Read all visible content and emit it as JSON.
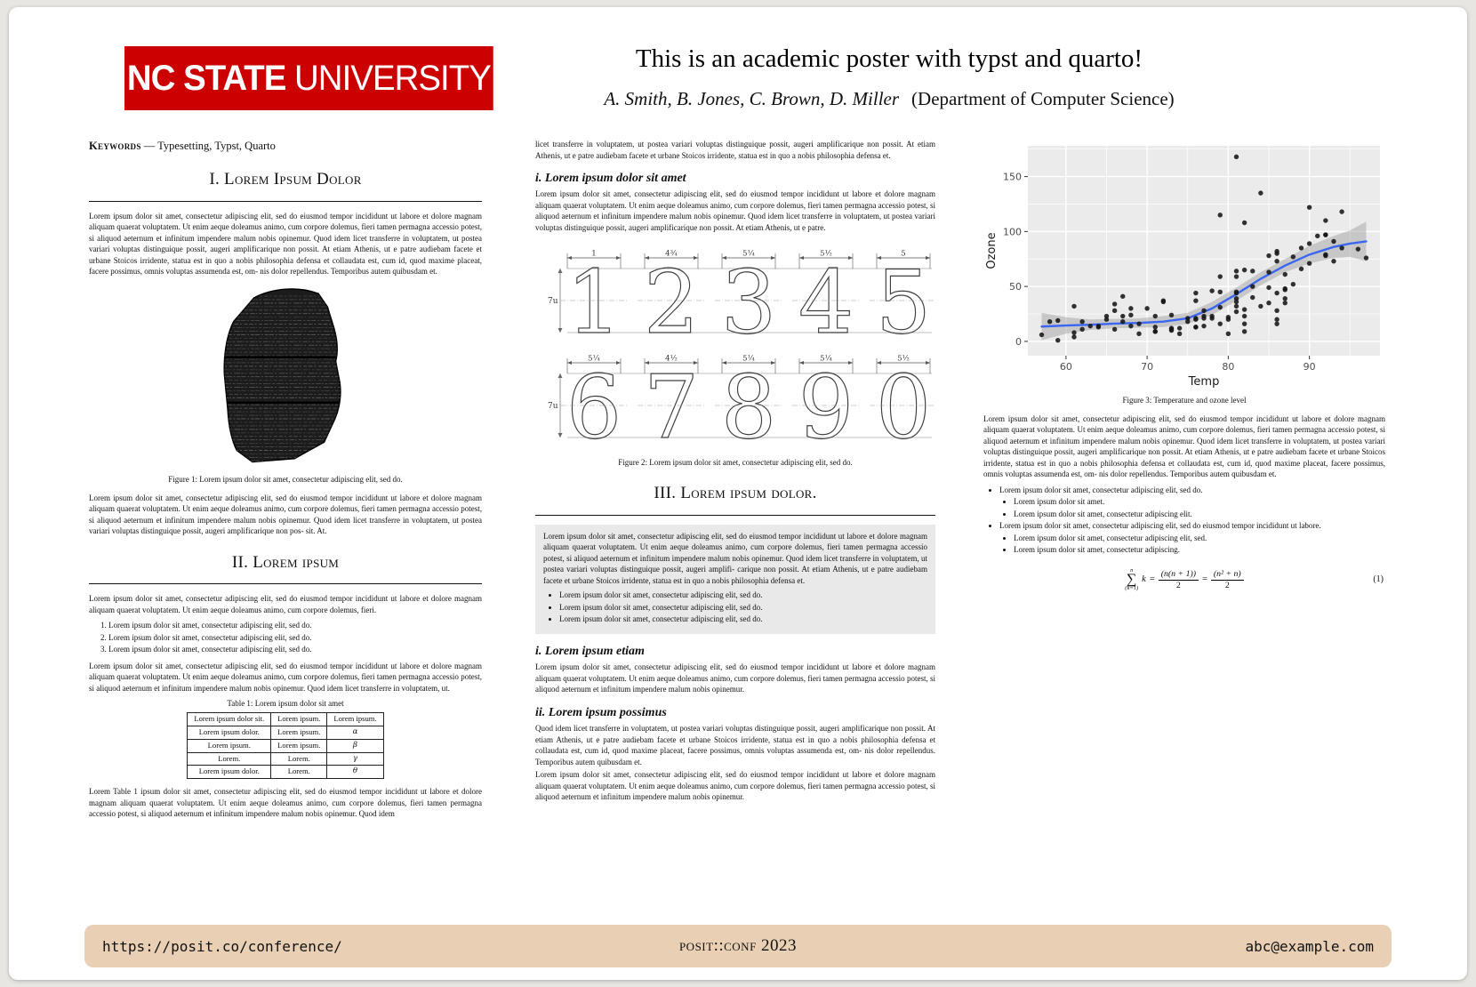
{
  "logo": {
    "bold": "NC STATE",
    "regular": "UNIVERSITY"
  },
  "header": {
    "title": "This is an academic poster with typst and quarto!",
    "authors": "A. Smith, B. Jones, C. Brown, D. Miller",
    "affiliation": "(Department of Computer Science)"
  },
  "keywords": {
    "label": "Keywords",
    "value": "— Typesetting, Typst, Quarto"
  },
  "sections": {
    "s1": "I. Lorem Ipsum Dolor",
    "s2": "II. Lorem ipsum",
    "s3": "III. Lorem ipsum dolor."
  },
  "col1": {
    "para1": "Lorem ipsum dolor sit amet, consectetur adipiscing elit, sed do eiusmod tempor incididunt ut labore et dolore magnam aliquam quaerat voluptatem. Ut enim aeque doleamus animo, cum corpore dolemus, fieri tamen permagna accessio potest, si aliquod aeternum et infinitum impendere malum nobis opinemur. Quod idem licet transferre in voluptatem, ut postea variari voluptas distinguique possit, augeri amplificarique non possit. At etiam Athenis, ut e patre audiebam facete et urbane Stoicos irridente, statua est in quo a nobis philosophia defensa et collaudata est, cum id, quod maxime placeat, facere possimus, omnis voluptas assumenda est, om- nis dolor repellendus. Temporibus autem quibusdam et.",
    "fig1_caption": "Figure 1:  Lorem ipsum dolor sit amet, consectetur adipiscing elit, sed do.",
    "para2": "Lorem ipsum dolor sit amet, consectetur adipiscing elit, sed do eiusmod tempor incididunt ut labore et dolore magnam aliquam quaerat voluptatem. Ut enim aeque doleamus animo, cum corpore dolemus, fieri tamen permagna accessio potest, si aliquod aeternum et infinitum impendere malum nobis opinemur. Quod idem licet transferre in voluptatem, ut postea variari voluptas distinguique possit, augeri amplificarique non pos- sit. At.",
    "s2_para1": "Lorem ipsum dolor sit amet, consectetur adipiscing elit, sed do eiusmod tempor incididunt ut labore et dolore magnam aliquam quaerat voluptatem. Ut enim aeque doleamus animo, cum corpore dolemus, fieri.",
    "numbered": [
      "Lorem ipsum dolor sit amet, consectetur adipiscing elit, sed do.",
      "Lorem ipsum dolor sit amet, consectetur adipiscing elit, sed do.",
      "Lorem ipsum dolor sit amet, consectetur adipiscing elit, sed do."
    ],
    "s2_para2": "Lorem ipsum dolor sit amet, consectetur adipiscing elit, sed do eiusmod tempor incididunt ut labore et dolore magnam aliquam quaerat voluptatem. Ut enim aeque doleamus animo, cum corpore dolemus, fieri tamen permagna accessio potest, si aliquod aeternum et infinitum impendere malum nobis opinemur. Quod idem licet transferre in voluptatem, ut.",
    "table_caption": "Table 1:  Lorem ipsum dolor sit amet",
    "s2_para3": "Lorem Table 1 ipsum dolor sit amet, consectetur adipiscing elit, sed do eiusmod tempor incididunt ut labore et dolore magnam aliquam quaerat voluptatem. Ut enim aeque doleamus animo, cum corpore dolemus, fieri tamen permagna accessio potest, si aliquod aeternum et infinitum impendere malum nobis opinemur. Quod idem"
  },
  "table1": {
    "headers": [
      "Lorem ipsum dolor sit.",
      "Lorem ipsum.",
      "Lorem ipsum."
    ],
    "rows": [
      [
        "Lorem ipsum dolor.",
        "Lorem ipsum.",
        "α"
      ],
      [
        "Lorem ipsum.",
        "Lorem ipsum.",
        "β"
      ],
      [
        "Lorem.",
        "Lorem.",
        "γ"
      ],
      [
        "Lorem ipsum dolor.",
        "Lorem.",
        "θ"
      ]
    ]
  },
  "col2": {
    "cont_para": "licet transferre in voluptatem, ut postea variari voluptas distinguique possit, augeri amplificarique non possit. At etiam Athenis, ut e patre audiebam facete et urbane Stoicos irridente, statua est in quo a nobis philosophia defensa et.",
    "sub1_title": "i. Lorem ipsum dolor sit amet",
    "sub1_para": "Lorem ipsum dolor sit amet, consectetur adipiscing elit, sed do eiusmod tempor incididunt ut labore et dolore magnam aliquam quaerat voluptatem. Ut enim aeque doleamus animo, cum corpore dolemus, fieri tamen permagna accessio potest, si aliquod aeternum et infinitum impendere malum nobis opinemur. Quod idem licet transferre in voluptatem, ut postea variari voluptas distinguique possit, augeri amplificarique non possit. At etiam Athenis, ut e patre.",
    "fig2_caption": "Figure 2:  Lorem ipsum dolor sit amet, consectetur adipiscing elit, sed do.",
    "callout_para": "Lorem ipsum dolor sit amet, consectetur adipiscing elit, sed do eiusmod tempor incididunt ut labore et dolore magnam aliquam quaerat voluptatem. Ut enim aeque doleamus animo, cum corpore dolemus, fieri tamen permagna accessio potest, si aliquod aeternum et infinitum impendere malum nobis opinemur. Quod idem licet transferre in voluptatem, ut postea variari voluptas distinguique possit, augeri amplifi- carique non possit. At etiam Athenis, ut e patre audiebam facete et urbane Stoicos irridente, statua est in quo a nobis philosophia defensa et.",
    "callout_bullets": [
      "Lorem ipsum dolor sit amet, consectetur adipiscing elit, sed do.",
      "Lorem ipsum dolor sit amet, consectetur adipiscing elit, sed do.",
      "Lorem ipsum dolor sit amet, consectetur adipiscing elit, sed do."
    ],
    "sub2_title": "i. Lorem ipsum etiam",
    "sub2_para": "Lorem ipsum dolor sit amet, consectetur adipiscing elit, sed do eiusmod tempor incididunt ut labore et dolore magnam aliquam quaerat voluptatem. Ut enim aeque doleamus animo, cum corpore dolemus, fieri tamen permagna accessio potest, si aliquod aeternum et infinitum impendere malum nobis opinemur.",
    "sub3_title": "ii. Lorem ipsum possimus",
    "sub3_para1": "Quod idem licet transferre in voluptatem, ut postea variari voluptas distinguique possit, augeri amplificarique non possit. At etiam Athenis, ut e patre audiebam facete et urbane Stoicos irridente, statua est in quo a nobis philosophia defensa et collaudata est, cum id, quod maxime placeat, facere possimus, omnis voluptas assumenda est, om- nis dolor repellendus. Temporibus autem quibusdam et.",
    "sub3_para2": "Lorem ipsum dolor sit amet, consectetur adipiscing elit, sed do eiusmod tempor incididunt ut labore et dolore magnam aliquam quaerat voluptatem. Ut enim aeque doleamus animo, cum corpore dolemus, fieri tamen permagna accessio potest, si aliquod aeternum et infinitum impendere malum nobis opinemur."
  },
  "figure2": {
    "top_digits": [
      "1",
      "2",
      "3",
      "4",
      "5"
    ],
    "top_widths": [
      "1",
      "4¾",
      "5¼",
      "5½",
      "5"
    ],
    "bottom_digits": [
      "6",
      "7",
      "8",
      "9",
      "0"
    ],
    "bottom_widths": [
      "5¼",
      "4½",
      "5¼",
      "5¼",
      "5½"
    ],
    "height_label": "7u"
  },
  "col3": {
    "fig3_caption": "Figure 3:  Temperature and ozone level",
    "para": "Lorem ipsum dolor sit amet, consectetur adipiscing elit, sed do eiusmod tempor incididunt ut labore et dolore magnam aliquam quaerat voluptatem. Ut enim aeque doleamus animo, cum corpore dolemus, fieri tamen permagna accessio potest, si aliquod aeternum et infinitum impendere malum nobis opinemur. Quod idem licet transferre in voluptatem, ut postea variari voluptas distinguique possit, augeri amplificarique non possit. At etiam Athenis, ut e patre audiebam facete et urbane Stoicos irridente, statua est in quo a nobis philosophia defensa et collaudata est, cum id, quod maxime placeat, facere possimus, omnis voluptas assumenda est, om- nis dolor repellendus. Temporibus autem quibusdam et.",
    "bullets": [
      {
        "text": "Lorem ipsum dolor sit amet, consectetur adipiscing elit, sed do.",
        "sub": [
          "Lorem ipsum dolor sit amet.",
          "Lorem ipsum dolor sit amet, consectetur adipiscing elit."
        ]
      },
      {
        "text": "Lorem ipsum dolor sit amet, consectetur adipiscing elit, sed do eiusmod tempor incididunt ut labore.",
        "sub": [
          "Lorem ipsum dolor sit amet, consectetur adipiscing elit, sed.",
          "Lorem ipsum dolor sit amet, consectetur adipiscing."
        ]
      }
    ]
  },
  "equation": {
    "sum_top": "n",
    "sum_bottom": "(k=1)",
    "op": "∑",
    "var": "k",
    "eq1": "=",
    "frac1_num": "(n(n + 1))",
    "frac1_den": "2",
    "eq2": "=",
    "frac2_num": "(n² + n)",
    "frac2_den": "2",
    "tag": "(1)"
  },
  "footer": {
    "left": "https://posit.co/conference/",
    "center": "posit::conf 2023",
    "right": "abc@example.com"
  },
  "colors": {
    "brand_red": "#CC0000",
    "footer_bg": "#E9D0B4",
    "callout_bg": "#E9E9E9",
    "chart_panel": "#EBEBEB",
    "smooth_line": "#3A66F2",
    "ribbon": "#9B9B9B",
    "point": "#161616"
  },
  "chart_data": {
    "type": "scatter",
    "title": "",
    "xlabel": "Temp",
    "ylabel": "Ozone",
    "xlim": [
      55.3,
      98.7
    ],
    "ylim": [
      -13,
      178
    ],
    "x_ticks": [
      60,
      70,
      80,
      90
    ],
    "x_minor": [
      65,
      75,
      85,
      95
    ],
    "y_ticks": [
      0,
      50,
      100,
      150
    ],
    "y_minor": [
      25,
      75,
      125,
      175
    ],
    "grid": true,
    "legend": false,
    "points": [
      [
        67,
        41
      ],
      [
        72,
        36
      ],
      [
        74,
        12
      ],
      [
        62,
        18
      ],
      [
        66,
        28
      ],
      [
        65,
        23
      ],
      [
        59,
        19
      ],
      [
        61,
        8
      ],
      [
        74,
        7
      ],
      [
        69,
        16
      ],
      [
        66,
        11
      ],
      [
        68,
        14
      ],
      [
        58,
        18
      ],
      [
        64,
        14
      ],
      [
        66,
        34
      ],
      [
        57,
        6
      ],
      [
        68,
        30
      ],
      [
        62,
        11
      ],
      [
        59,
        1
      ],
      [
        73,
        11
      ],
      [
        61,
        4
      ],
      [
        61,
        32
      ],
      [
        67,
        23
      ],
      [
        81,
        45
      ],
      [
        79,
        115
      ],
      [
        76,
        37
      ],
      [
        82,
        29
      ],
      [
        90,
        71
      ],
      [
        87,
        39
      ],
      [
        82,
        23
      ],
      [
        77,
        21
      ],
      [
        72,
        37
      ],
      [
        65,
        20
      ],
      [
        73,
        12
      ],
      [
        76,
        13
      ],
      [
        84,
        135
      ],
      [
        85,
        49
      ],
      [
        81,
        32
      ],
      [
        83,
        64
      ],
      [
        83,
        40
      ],
      [
        88,
        77
      ],
      [
        92,
        97
      ],
      [
        92,
        97
      ],
      [
        89,
        85
      ],
      [
        73,
        10
      ],
      [
        81,
        27
      ],
      [
        80,
        7
      ],
      [
        87,
        48
      ],
      [
        85,
        35
      ],
      [
        87,
        61
      ],
      [
        92,
        79
      ],
      [
        85,
        63
      ],
      [
        79,
        16
      ],
      [
        86,
        80
      ],
      [
        82,
        108
      ],
      [
        86,
        20
      ],
      [
        88,
        52
      ],
      [
        86,
        82
      ],
      [
        83,
        50
      ],
      [
        81,
        64
      ],
      [
        81,
        59
      ],
      [
        81,
        39
      ],
      [
        82,
        9
      ],
      [
        86,
        16
      ],
      [
        85,
        78
      ],
      [
        87,
        35
      ],
      [
        89,
        66
      ],
      [
        90,
        122
      ],
      [
        90,
        89
      ],
      [
        92,
        110
      ],
      [
        86,
        44
      ],
      [
        86,
        28
      ],
      [
        82,
        65
      ],
      [
        80,
        22
      ],
      [
        79,
        59
      ],
      [
        77,
        23
      ],
      [
        79,
        31
      ],
      [
        76,
        44
      ],
      [
        78,
        21
      ],
      [
        71,
        9
      ],
      [
        79,
        45
      ],
      [
        81,
        168
      ],
      [
        86,
        73
      ],
      [
        97,
        76
      ],
      [
        94,
        118
      ],
      [
        96,
        84
      ],
      [
        94,
        85
      ],
      [
        91,
        96
      ],
      [
        92,
        78
      ],
      [
        93,
        73
      ],
      [
        93,
        91
      ],
      [
        87,
        47
      ],
      [
        84,
        32
      ],
      [
        80,
        20
      ],
      [
        78,
        23
      ],
      [
        75,
        21
      ],
      [
        73,
        24
      ],
      [
        81,
        44
      ],
      [
        76,
        21
      ],
      [
        77,
        28
      ],
      [
        71,
        9
      ],
      [
        71,
        13
      ],
      [
        78,
        46
      ],
      [
        67,
        18
      ],
      [
        76,
        13
      ],
      [
        68,
        24
      ],
      [
        82,
        16
      ],
      [
        64,
        13
      ],
      [
        71,
        23
      ],
      [
        81,
        36
      ],
      [
        69,
        7
      ],
      [
        63,
        14
      ],
      [
        70,
        30
      ],
      [
        77,
        14
      ],
      [
        75,
        18
      ],
      [
        76,
        20
      ]
    ],
    "smooth": {
      "x": [
        57,
        60,
        63,
        66,
        69,
        72,
        75,
        78,
        81,
        84,
        87,
        90,
        93,
        95,
        97
      ],
      "fit": [
        13.5,
        14.5,
        15.2,
        16.2,
        16.8,
        18,
        21,
        30,
        43,
        57,
        69,
        79,
        86,
        89,
        91
      ],
      "lower": [
        1,
        7,
        10.5,
        12,
        12.5,
        13,
        16,
        24,
        37,
        51,
        63,
        71,
        76,
        77,
        73
      ],
      "upper": [
        26,
        22,
        20,
        20.5,
        21,
        23,
        26,
        36,
        49,
        63,
        75,
        87,
        96,
        101,
        109
      ]
    }
  }
}
